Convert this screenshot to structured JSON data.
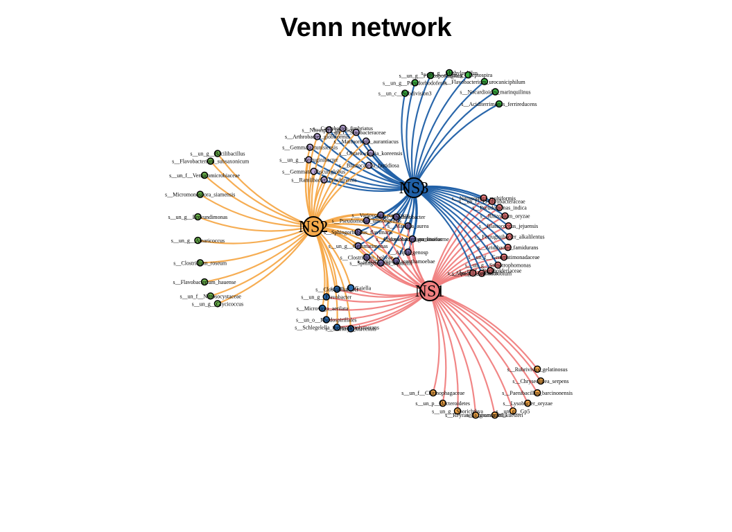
{
  "title": "Venn network",
  "colors": {
    "NS1_edge": "#f08080",
    "NS2_edge": "#f5a94a",
    "NS3_edge": "#1f5fa6",
    "NS1_node": "#f08080",
    "NS2_node": "#f5a94a",
    "NS3_node": "#1f5fa6",
    "unique_NS1": "#f5a94a",
    "unique_NS2": "#6ab04c",
    "unique_NS3": "#3cb043",
    "NS1_NS2": "#2b6cb0",
    "NS2_NS3": "#b9a7d9",
    "NS1_NS3": "#e8787a",
    "all": "#7b6fae"
  },
  "hubs": [
    {
      "id": "NS1",
      "label": "NS1"
    },
    {
      "id": "NS2",
      "label": "NS2"
    },
    {
      "id": "NS3",
      "label": "NS3"
    }
  ],
  "groups": [
    {
      "id": "unique_NS3",
      "hubs": [
        "NS3"
      ],
      "leaves": [
        "s__un_c__Subdivision3",
        "s__un_g__Pseudorhodoferax",
        "s__un_g__Planosporangium",
        "s__un_g__Methylophilus",
        "s__un_g__Leptospira",
        "s__Flavobacterium_urocaniciphilum",
        "s__Nocardioides_marinquilinus",
        "s__Aciditerrimonas_ferrireducens"
      ]
    },
    {
      "id": "unique_NS2",
      "hubs": [
        "NS2"
      ],
      "leaves": [
        "s__un_g__Glycicoccus",
        "s__un_f__Nitrosocystaceae",
        "s__Flavobacterium_hauense",
        "s__Clostridium_roseum",
        "s__un_g__Amaricoccus",
        "s__un_g__Brevundimonas",
        "s__Micromonospora_siamensis",
        "s__un_f__Verrucomicrobiaceae",
        "s__Flavobacterium_subsaxonicum",
        "s__un_g__Bacilibacillus"
      ]
    },
    {
      "id": "unique_NS1",
      "hubs": [
        "NS1"
      ],
      "leaves": [
        "s__Rubrivivax_gelatinosus",
        "s__Chryseolinea_serpens",
        "s__Paenibacillus_barcinonensis",
        "s__Lysobacter_oryzae",
        "s__un_g__Gp5",
        "s__Nonomuraea_kuesteri",
        "s__Reyranella_graminifolii",
        "s__un_g__Sporichthya",
        "s__un_p__Bacteroidetes",
        "s__un_f__Chitinophagaceae"
      ]
    },
    {
      "id": "NS2_NS3",
      "hubs": [
        "NS2",
        "NS3"
      ],
      "leaves": [
        "s__Ramlibacter_henchirensis",
        "s__Gemmata_obscuriglobus",
        "s__un_g__Ferruginibacter",
        "s__Gemmata_tunisiensis",
        "s__Arthrobacter_globiformis",
        "s__Nitrospira_japonicus",
        "s__Caulobacter_fimbriatus",
        "s__un_f__Sinobacteraceae",
        "s__Marmoricola_aurantiacus",
        "s__Ohtaekwangia_koreensis",
        "s__Blastocatella_fastidiosa"
      ]
    },
    {
      "id": "NS1_NS3",
      "hubs": [
        "NS1",
        "NS3"
      ],
      "leaves": [
        "s__Nitrosospira_multiformis",
        "s__un_f__Erythrobacteraceae",
        "s__Pseudomonas_indica",
        "s__Rhizobium_oryzae",
        "s__Blastococcus_jejuensis",
        "s__Ferruginibacter_alkalilentus",
        "s__Aridibacter_famidurans",
        "s__un_f__Gemmatimonadaceae",
        "s__un_g__Stenotrophomonas",
        "s__un_f__Burkholderiaceae",
        "s__un_g__Aeromicrobium",
        "s__Aquicella_siphonis"
      ]
    },
    {
      "id": "NS1_NS2",
      "hubs": [
        "NS1",
        "NS2"
      ],
      "leaves": [
        "s__Starkeya_koreensis",
        "s__Schlegelella_thermodepolymerans",
        "s__un_o__Rhodospirillales",
        "s__Microvirga_aerilata",
        "s__un_g__Flavobacter",
        "s__Clostridium_XI",
        "s__un_g__Gaiella"
      ]
    },
    {
      "id": "all",
      "hubs": [
        "NS1",
        "NS2",
        "NS3"
      ],
      "leaves": [
        "s__Phenylobacterium_lituiforme",
        "s__Afipia_genosp",
        "s__Parachlamydia_acanthamoebae",
        "s__Sphingomonas_aquatilis",
        "s__Clostridium_bolteae",
        "s__un_g__Gemmatimonas",
        "s__Sphingorhabdus_flavimaris",
        "s__Pseudomonas_umsongensis",
        "s__Variovorax_paradoxus",
        "s__un_g__Rhodanobacter",
        "s__Massilia_aurea",
        "s__Lysobacter_gummosus"
      ]
    }
  ]
}
